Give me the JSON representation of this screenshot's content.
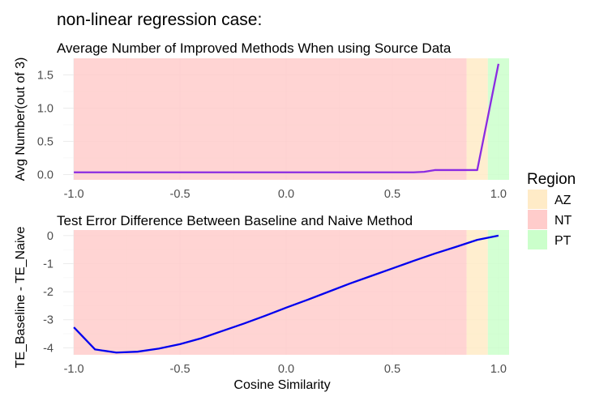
{
  "chart_data": {
    "type": "line",
    "title": "non-linear regression case:",
    "xlabel": "Cosine Similarity",
    "xlim": [
      -1.05,
      1.05
    ],
    "x_ticks": [
      -1.0,
      -0.5,
      0.0,
      0.5,
      1.0
    ],
    "x_tick_labels": [
      "-1.0",
      "-0.5",
      "0.0",
      "0.5",
      "1.0"
    ],
    "legend": {
      "title": "Region",
      "position": "right",
      "entries": [
        {
          "key": "AZ",
          "label": "AZ",
          "color": "#ffebc7"
        },
        {
          "key": "NT",
          "label": "NT",
          "color": "#ffcccb"
        },
        {
          "key": "PT",
          "label": "PT",
          "color": "#cbffcb"
        }
      ]
    },
    "regions": [
      {
        "key": "NT",
        "x0": -1.0,
        "x1": 0.85
      },
      {
        "key": "AZ",
        "x0": 0.85,
        "x1": 0.95
      },
      {
        "key": "PT",
        "x0": 0.95,
        "x1": 1.05
      }
    ],
    "panels": [
      {
        "id": "top",
        "title": "Average Number of Improved Methods When using Source Data",
        "ylabel": "Avg Number(out of 3)",
        "ylim": [
          -0.08,
          1.75
        ],
        "y_ticks": [
          0.0,
          0.5,
          1.0,
          1.5
        ],
        "y_tick_labels": [
          "0.0",
          "0.5",
          "1.0",
          "1.5"
        ],
        "series": [
          {
            "name": "Avg Number",
            "color": "#8a2be2",
            "x": [
              -1.0,
              -0.9,
              -0.8,
              -0.7,
              -0.6,
              -0.5,
              -0.4,
              -0.3,
              -0.2,
              -0.1,
              0.0,
              0.1,
              0.2,
              0.3,
              0.4,
              0.5,
              0.6,
              0.65,
              0.7,
              0.8,
              0.85,
              0.9,
              1.0
            ],
            "values": [
              0.033,
              0.033,
              0.033,
              0.033,
              0.033,
              0.033,
              0.033,
              0.033,
              0.033,
              0.033,
              0.033,
              0.033,
              0.033,
              0.033,
              0.033,
              0.033,
              0.033,
              0.04,
              0.067,
              0.067,
              0.067,
              0.067,
              1.667
            ]
          }
        ]
      },
      {
        "id": "bottom",
        "title": "Test Error Difference Between Baseline and Naive Method",
        "ylabel": "TE_Baseline - TE_Naive",
        "ylim": [
          -4.25,
          0.2
        ],
        "y_ticks": [
          0,
          -1,
          -2,
          -3,
          -4
        ],
        "y_tick_labels": [
          "0",
          "-1",
          "-2",
          "-3",
          "-4"
        ],
        "series": [
          {
            "name": "TE Difference",
            "color": "#0000ee",
            "x": [
              -1.0,
              -0.9,
              -0.8,
              -0.7,
              -0.6,
              -0.5,
              -0.4,
              -0.3,
              -0.2,
              -0.1,
              0.0,
              0.1,
              0.2,
              0.3,
              0.4,
              0.5,
              0.6,
              0.7,
              0.8,
              0.9,
              1.0
            ],
            "values": [
              -3.27,
              -4.06,
              -4.17,
              -4.14,
              -4.03,
              -3.87,
              -3.66,
              -3.4,
              -3.14,
              -2.86,
              -2.57,
              -2.29,
              -2.0,
              -1.71,
              -1.44,
              -1.17,
              -0.9,
              -0.64,
              -0.4,
              -0.15,
              0.0
            ]
          }
        ]
      }
    ]
  }
}
